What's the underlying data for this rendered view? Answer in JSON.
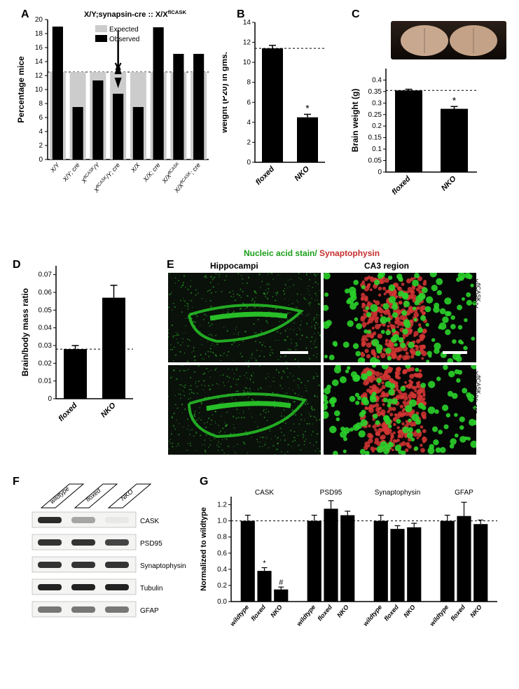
{
  "panelA": {
    "label": "A",
    "title": "X/Y;synapsin-cre  ::  X/X^flCASK",
    "ylabel": "Percentage mice",
    "ylim": [
      0,
      20
    ],
    "ytick_step": 2,
    "categories": [
      "X/Y",
      "X/Y; cre",
      "X^flCASK/Y",
      "X^flCASK/Y; cre",
      "X/X",
      "X/X; cre",
      "X/X^flCASK",
      "X/X^flCASK; cre"
    ],
    "expected": [
      12.5,
      12.5,
      12.5,
      12.5,
      12.5,
      12.5,
      12.5,
      12.5
    ],
    "observed": [
      19,
      7.5,
      11.3,
      9.4,
      7.5,
      18.9,
      15.1,
      15.1
    ],
    "expected_color": "#cccccc",
    "observed_color": "#000000",
    "dashed_line": 12.5,
    "legend": {
      "expected": "Expected",
      "observed": "Observed"
    },
    "arrow_index": 3
  },
  "panelB": {
    "label": "B",
    "ylabel": "weight (P20) in gms.",
    "ylim": [
      0,
      14
    ],
    "ytick_step": 2,
    "categories": [
      "floxed",
      "NKO"
    ],
    "values": [
      11.4,
      4.5
    ],
    "errors": [
      0.3,
      0.3
    ],
    "dashed_line": 11.4,
    "bar_color": "#000000",
    "significance_label": "*"
  },
  "panelC": {
    "label": "C",
    "ylabel": "Brain weight (g)",
    "ylim": [
      0,
      0.45
    ],
    "yticks": [
      0,
      0.05,
      0.1,
      0.15,
      0.2,
      0.25,
      0.3,
      0.35,
      0.4
    ],
    "categories": [
      "floxed",
      "NKO"
    ],
    "values": [
      0.355,
      0.275
    ],
    "errors": [
      0.005,
      0.01
    ],
    "dashed_line": 0.355,
    "bar_color": "#000000",
    "significance_label": "*"
  },
  "panelD": {
    "label": "D",
    "ylabel": "Brain/body mass ratio",
    "ylim": [
      0,
      0.075
    ],
    "ytick_step": 0.01,
    "categories": [
      "floxed",
      "NKO"
    ],
    "values": [
      0.028,
      0.057
    ],
    "errors": [
      0.002,
      0.007
    ],
    "dashed_line": 0.028,
    "bar_color": "#000000"
  },
  "panelE": {
    "label": "E",
    "title_green": "Nucleic acid stain/",
    "title_red": " Synaptophysin",
    "col_headers": [
      "Hippocampi",
      "CA3 region"
    ],
    "row_labels": [
      "X^flCASK/Y",
      "X^flCASK/Y; cre"
    ],
    "green": "#2bd22b",
    "red": "#d33634"
  },
  "panelF": {
    "label": "F",
    "lanes": [
      "wildtype",
      "floxed",
      "NKO"
    ],
    "proteins": [
      "CASK",
      "PSD95",
      "Synaptophysin",
      "Tubulin",
      "GFAP"
    ],
    "band_colors": {
      "CASK": [
        "#2b2b2b",
        "#a5a5a5",
        "#e8e8e8"
      ],
      "PSD95": [
        "#333333",
        "#333333",
        "#444444"
      ],
      "Synaptophysin": [
        "#333333",
        "#333333",
        "#333333"
      ],
      "Tubulin": [
        "#222222",
        "#222222",
        "#222222"
      ],
      "GFAP": [
        "#777777",
        "#777777",
        "#777777"
      ]
    }
  },
  "panelG": {
    "label": "G",
    "ylabel": "Normalized to wildtype",
    "ylim": [
      0,
      1.3
    ],
    "ytick_step": 0.2,
    "dashed_line": 1.0,
    "groups": [
      "CASK",
      "PSD95",
      "Synaptophysin",
      "GFAP"
    ],
    "bar_labels": [
      "wildtype",
      "floxed",
      "NKO"
    ],
    "values": {
      "CASK": [
        1.0,
        0.38,
        0.15
      ],
      "PSD95": [
        1.0,
        1.15,
        1.07
      ],
      "Synaptophysin": [
        1.0,
        0.9,
        0.92
      ],
      "GFAP": [
        1.0,
        1.06,
        0.96
      ]
    },
    "errors": {
      "CASK": [
        0.07,
        0.04,
        0.03
      ],
      "PSD95": [
        0.07,
        0.1,
        0.05
      ],
      "Synaptophysin": [
        0.07,
        0.04,
        0.05
      ],
      "GFAP": [
        0.07,
        0.17,
        0.05
      ]
    },
    "significance": {
      "CASK": [
        "",
        "*",
        "#"
      ]
    },
    "bar_color": "#000000"
  }
}
